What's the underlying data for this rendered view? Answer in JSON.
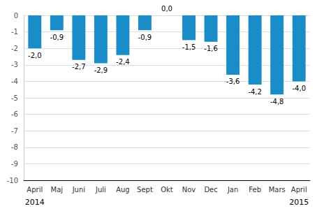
{
  "chart_data": {
    "type": "bar",
    "categories": [
      "April",
      "Maj",
      "Juni",
      "Juli",
      "Aug",
      "Sept",
      "Okt",
      "Nov",
      "Dec",
      "Jan",
      "Feb",
      "Mars",
      "April"
    ],
    "values": [
      -2.0,
      -0.9,
      -2.7,
      -2.9,
      -2.4,
      -0.9,
      0.0,
      -1.5,
      -1.6,
      -3.6,
      -4.2,
      -4.8,
      -4.0
    ],
    "value_labels": [
      "-2,0",
      "-0,9",
      "-2,7",
      "-2,9",
      "-2,4",
      "-0,9",
      "0,0",
      "-1,5",
      "-1,6",
      "-3,6",
      "-4,2",
      "-4,8",
      "-4,0"
    ],
    "data_labels": true,
    "color": "#1a8dc8",
    "ylim": [
      -10,
      0
    ],
    "yticks": [
      0,
      -1,
      -2,
      -3,
      -4,
      -5,
      -6,
      -7,
      -8,
      -9,
      -10
    ],
    "grid": true,
    "annotations": [
      {
        "text": "2014",
        "x": 0
      },
      {
        "text": "2015",
        "x": 12
      }
    ]
  }
}
